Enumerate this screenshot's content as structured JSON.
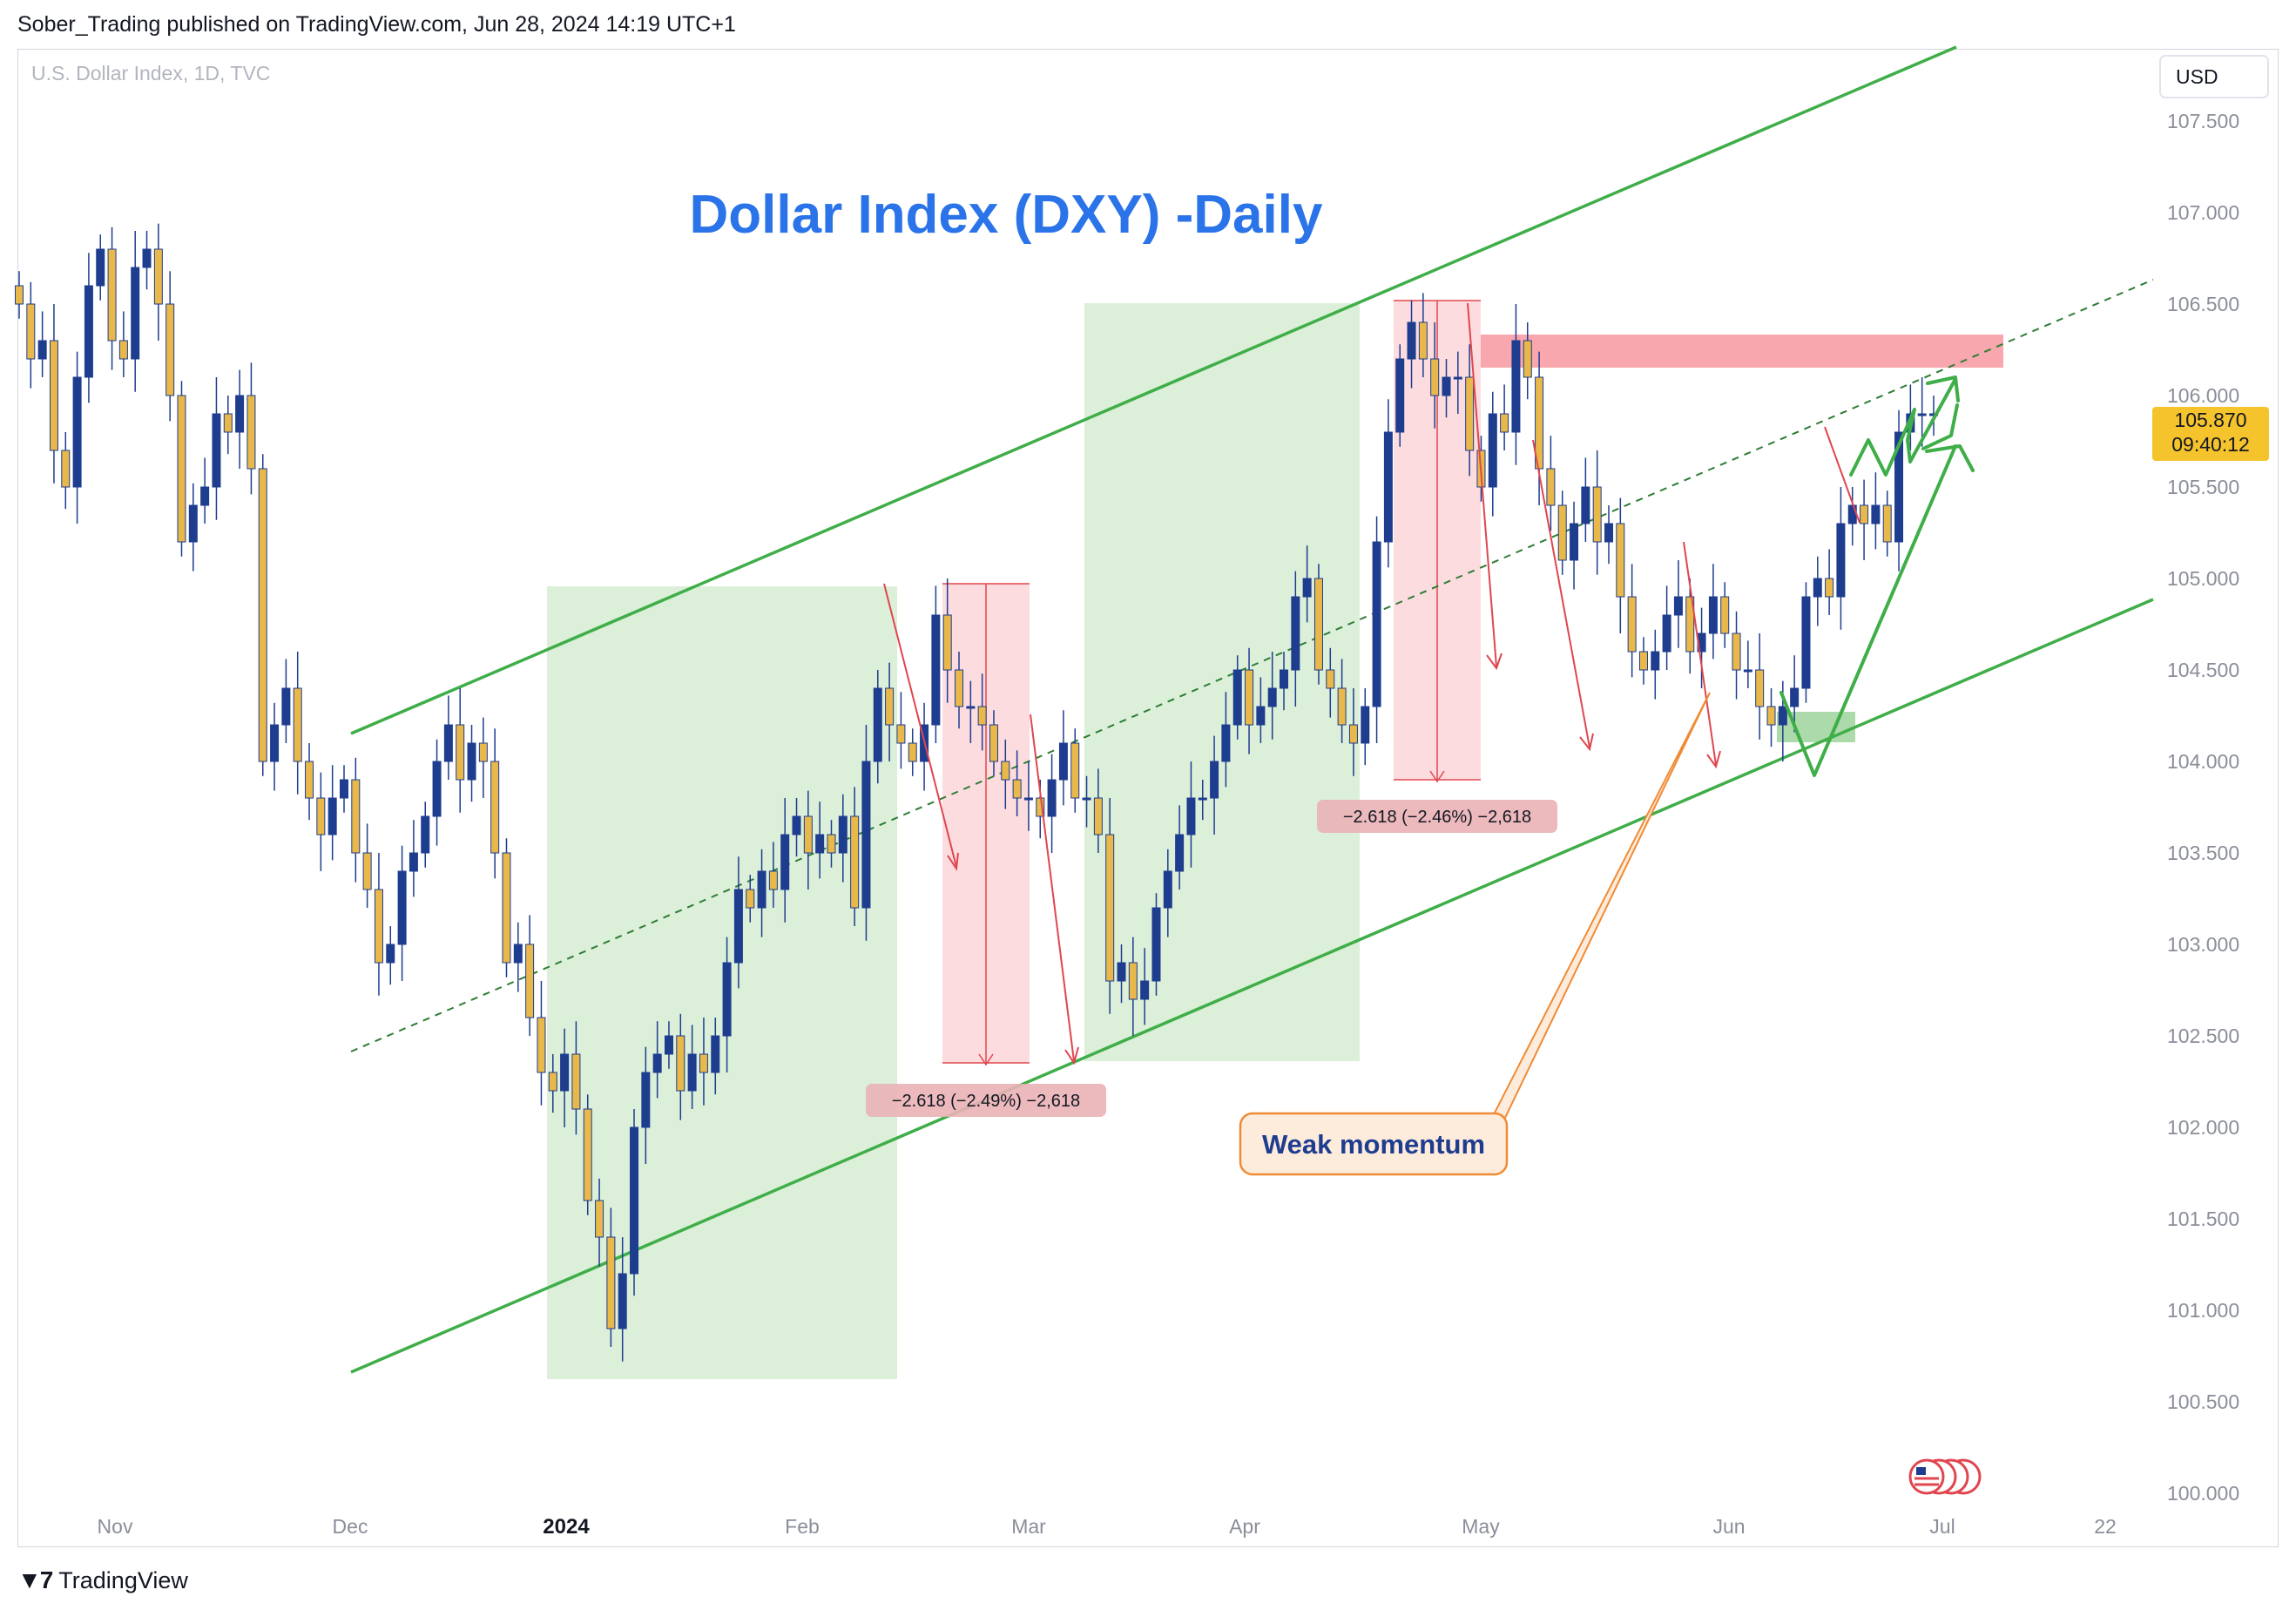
{
  "header": {
    "publish_line": "Sober_Trading published on TradingView.com, Jun 28, 2024 14:19 UTC+1"
  },
  "footer": {
    "brand": "TradingView",
    "logo": "tradingview-logo"
  },
  "chart_header": {
    "symbol_line": "U.S. Dollar Index, 1D, TVC",
    "currency_button": "USD"
  },
  "annotations": {
    "title": "Dollar Index (DXY) -Daily",
    "measure_1": "−2.618 (−2.49%) −2,618",
    "measure_2": "−2.618 (−2.46%) −2,618",
    "weak_momentum": "Weak momentum"
  },
  "price_label": {
    "value": "105.870",
    "countdown": "09:40:12"
  },
  "colors": {
    "bull_candle": "#1e3d8f",
    "bear_candle": "#e8b84a",
    "channel": "#3fae49",
    "title": "#2a73e8",
    "measure_zone": "#f8c8cc",
    "rally_zone": "#cfe8cc",
    "resistance": "#f7a7ad",
    "price_label": "#f5c32c"
  },
  "chart_data": {
    "type": "candlestick",
    "title": "Dollar Index (DXY) -Daily",
    "yaxis": {
      "range": [
        100.0,
        107.7
      ],
      "ticks": [
        "107.500",
        "107.000",
        "106.500",
        "106.000",
        "105.500",
        "105.000",
        "104.500",
        "104.000",
        "103.500",
        "103.000",
        "102.500",
        "102.000",
        "101.500",
        "101.000",
        "100.500",
        "100.000"
      ]
    },
    "xaxis": {
      "labels": [
        "Nov",
        "Dec",
        "2024",
        "Feb",
        "Mar",
        "Apr",
        "May",
        "Jun",
        "Jul",
        "22"
      ],
      "bold_label": "2024"
    },
    "last_price": 105.87,
    "close_series": [
      106.5,
      106.2,
      106.3,
      105.7,
      105.5,
      106.1,
      106.6,
      106.8,
      106.3,
      106.2,
      106.7,
      106.8,
      106.5,
      106.0,
      105.2,
      105.4,
      105.5,
      105.9,
      105.8,
      106.0,
      105.6,
      104.0,
      104.2,
      104.4,
      104.0,
      103.8,
      103.6,
      103.8,
      103.9,
      103.5,
      103.3,
      102.9,
      103.0,
      103.4,
      103.5,
      103.7,
      104.0,
      104.2,
      103.9,
      104.1,
      104.0,
      103.5,
      102.9,
      103.0,
      102.6,
      102.3,
      102.2,
      102.4,
      102.1,
      101.6,
      101.4,
      100.9,
      101.2,
      102.0,
      102.3,
      102.4,
      102.5,
      102.2,
      102.4,
      102.3,
      102.5,
      102.9,
      103.3,
      103.2,
      103.4,
      103.3,
      103.6,
      103.7,
      103.5,
      103.6,
      103.5,
      103.7,
      103.2,
      104.0,
      104.4,
      104.2,
      104.1,
      104.0,
      104.2,
      104.8,
      104.5,
      104.3,
      104.3,
      104.2,
      104.0,
      103.9,
      103.8,
      103.8,
      103.7,
      103.9,
      104.1,
      103.8,
      103.8,
      103.6,
      102.8,
      102.9,
      102.7,
      102.8,
      103.2,
      103.4,
      103.6,
      103.8,
      103.8,
      104.0,
      104.2,
      104.5,
      104.2,
      104.3,
      104.4,
      104.5,
      104.9,
      105.0,
      104.5,
      104.4,
      104.2,
      104.1,
      104.3,
      105.2,
      105.8,
      106.2,
      106.4,
      106.2,
      106.0,
      106.1,
      106.1,
      105.7,
      105.5,
      105.9,
      105.8,
      106.3,
      106.1,
      105.6,
      105.4,
      105.1,
      105.3,
      105.5,
      105.2,
      105.3,
      104.9,
      104.6,
      104.5,
      104.6,
      104.8,
      104.9,
      104.6,
      104.7,
      104.9,
      104.7,
      104.5,
      104.5,
      104.3,
      104.2,
      104.3,
      104.4,
      104.9,
      105.0,
      104.9,
      105.3,
      105.4,
      105.3,
      105.4,
      105.2,
      105.8,
      105.9,
      105.9,
      105.9
    ]
  }
}
